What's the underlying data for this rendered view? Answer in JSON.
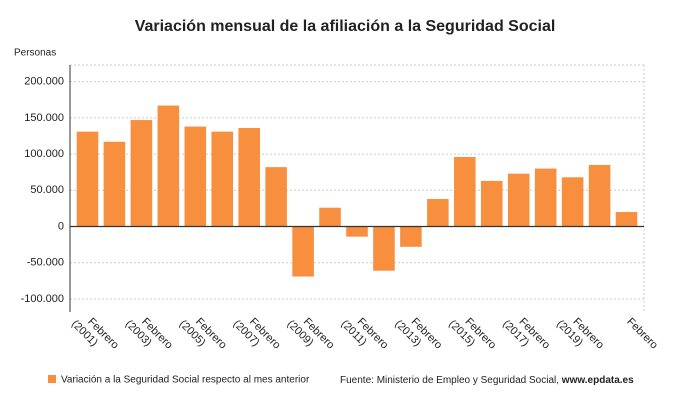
{
  "chart_data": {
    "type": "bar",
    "title": "Variación mensual de la afiliación a la Seguridad Social",
    "y_label": "Personas",
    "categories": [
      "Febrero (2001)",
      null,
      "Febrero (2003)",
      null,
      "Febrero (2005)",
      null,
      "Febrero (2007)",
      null,
      "Febrero (2009)",
      null,
      "Febrero (2011)",
      null,
      "Febrero (2013)",
      null,
      "Febrero (2015)",
      null,
      "Febrero (2017)",
      null,
      "Febrero (2019)",
      null,
      "Febrero"
    ],
    "series": [
      {
        "name": "Variación a la Seguridad Social respecto al mes anterior",
        "color": "#f78f3f",
        "values": [
          131000,
          117000,
          147000,
          167000,
          138000,
          131000,
          136000,
          82000,
          -69000,
          26000,
          -14000,
          -61000,
          -28000,
          38000,
          96000,
          63000,
          73000,
          80000,
          68000,
          85000,
          20000
        ]
      }
    ],
    "ylim": [
      -118000,
      223000
    ],
    "yticks": [
      {
        "value": -100000,
        "label": "-100.000"
      },
      {
        "value": -50000,
        "label": "-50.000"
      },
      0,
      {
        "value": 50000,
        "label": "50.000"
      },
      {
        "value": 100000,
        "label": "100.000"
      },
      {
        "value": 150000,
        "label": "150.000"
      },
      {
        "value": 200000,
        "label": "200.000"
      }
    ],
    "grid": true,
    "source": "Fuente: Ministerio de Empleo y Seguridad Social, ",
    "source_site": "www.epdata.es"
  }
}
